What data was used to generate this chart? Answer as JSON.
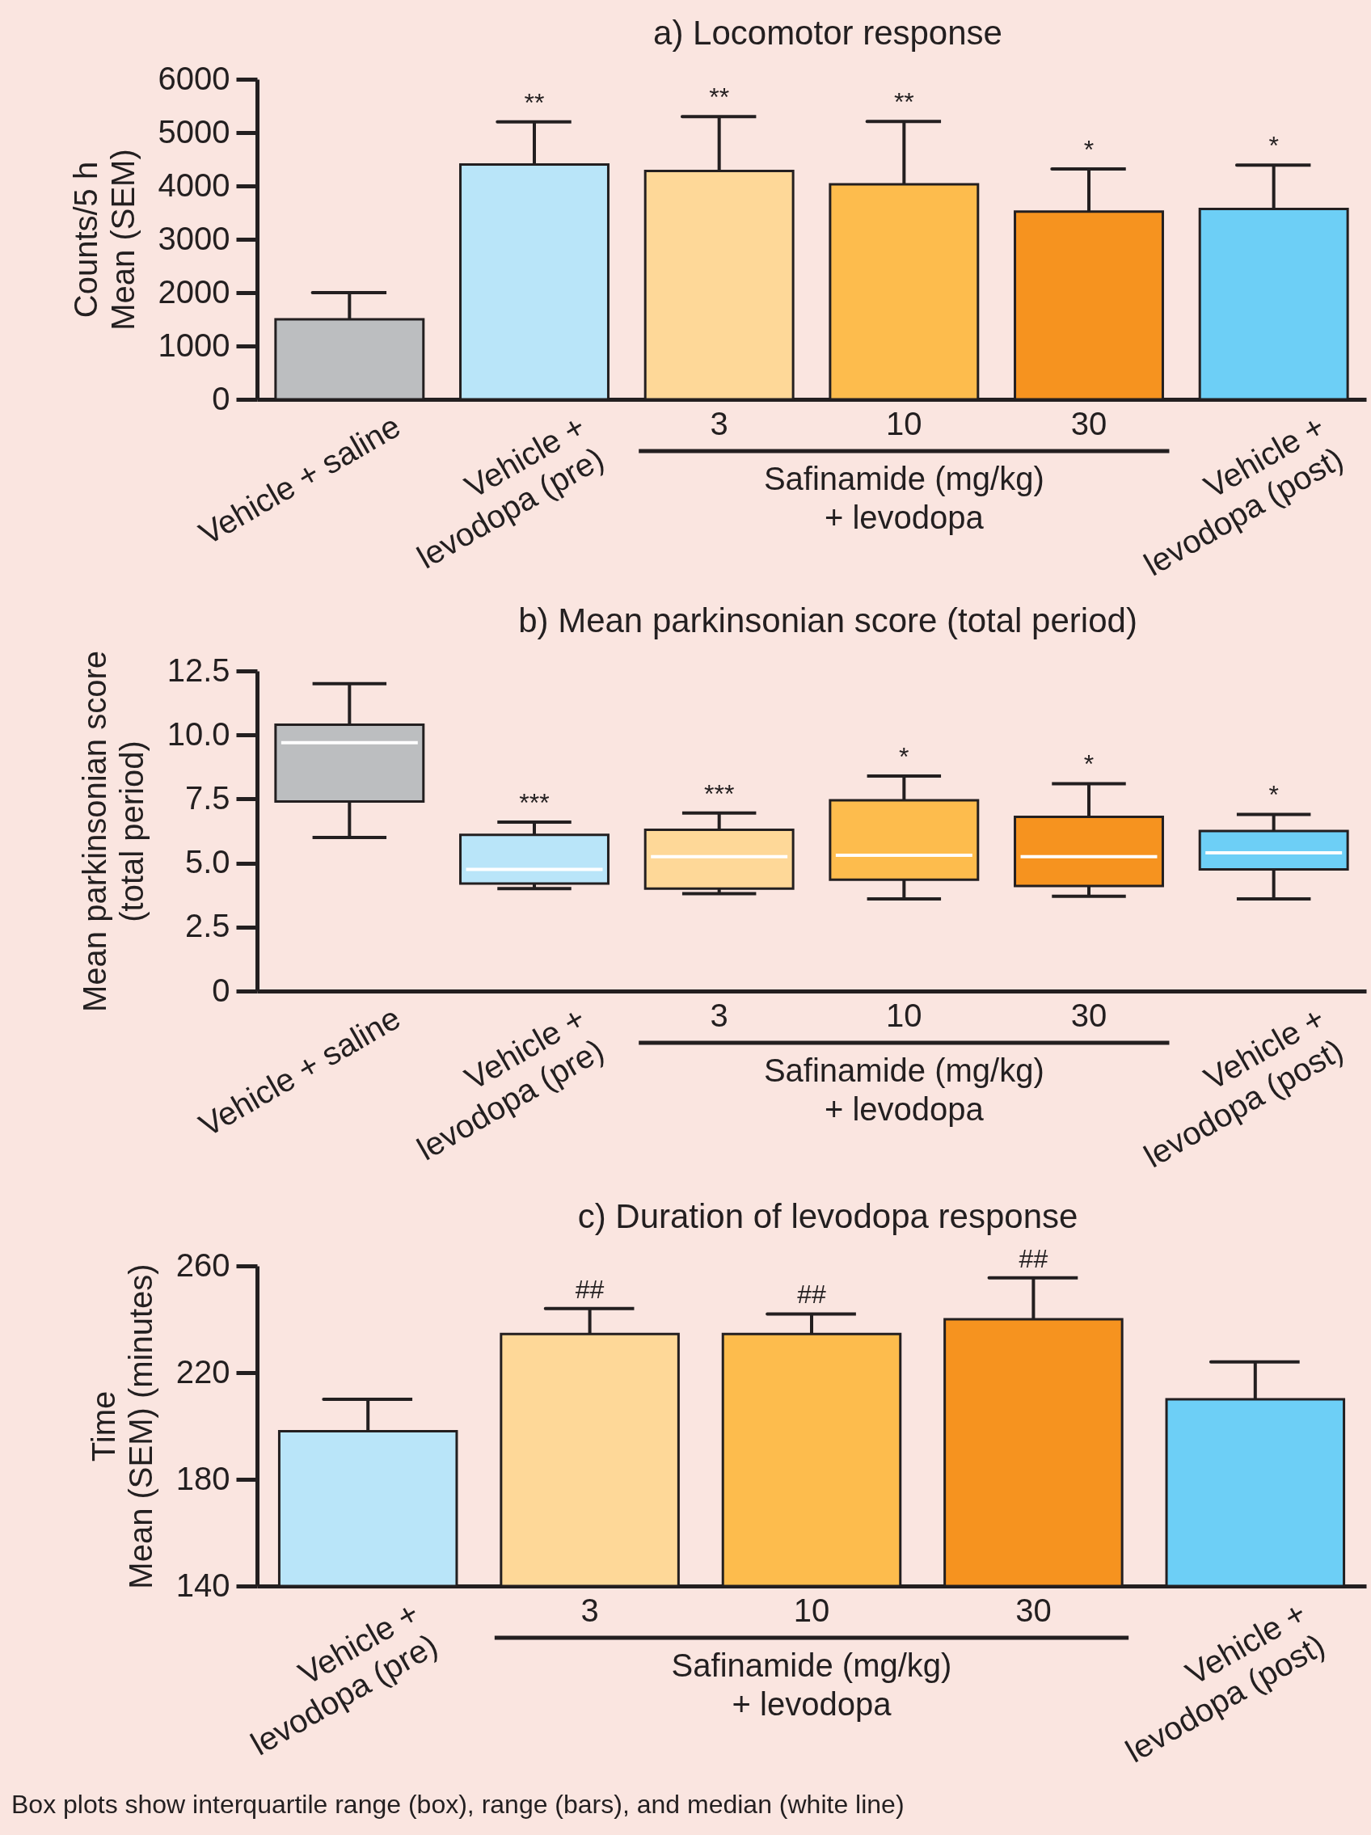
{
  "chart_data": [
    {
      "type": "bar",
      "title": "a) Locomotor response",
      "ylabel": "Counts/5 h\nMean (SEM)",
      "xlabel": "Safinamide (mg/kg)\n+ levodopa",
      "categories": [
        "Vehicle + saline",
        "Vehicle +\nlevodopa (pre)",
        "3",
        "10",
        "30",
        "Vehicle +\nlevodopa (post)"
      ],
      "values": [
        1500,
        4400,
        4280,
        4030,
        3520,
        3570
      ],
      "errors": [
        500,
        800,
        1020,
        1180,
        800,
        820
      ],
      "colors": [
        "#bcbec0",
        "#b9e5f9",
        "#fed898",
        "#fdbc4d",
        "#f6931f",
        "#6dcff6"
      ],
      "ylim": [
        0,
        6000
      ],
      "yticks": [
        0,
        1000,
        2000,
        3000,
        4000,
        5000,
        6000
      ],
      "annotations": [
        {
          "text": "**",
          "x": "Vehicle +\nlevodopa (pre)",
          "y": 5200
        },
        {
          "text": "**",
          "x": "3",
          "y": 5300
        },
        {
          "text": "**",
          "x": "10",
          "y": 5210
        },
        {
          "text": "*",
          "x": "30",
          "y": 4320
        },
        {
          "text": "*",
          "x": "Vehicle +\nlevodopa (post)",
          "y": 4390
        }
      ]
    },
    {
      "type": "box",
      "title": "b) Mean parkinsonian score (total period)",
      "ylabel": "Mean parkinsonian score\n(total period)",
      "xlabel": "Safinamide (mg/kg)\n+ levodopa",
      "categories": [
        "Vehicle + saline",
        "Vehicle +\nlevodopa (pre)",
        "3",
        "10",
        "30",
        "Vehicle +\nlevodopa (post)"
      ],
      "boxes": [
        {
          "low": 6.0,
          "q1": 7.4,
          "median": 9.7,
          "q3": 10.4,
          "high": 12.0
        },
        {
          "low": 4.0,
          "q1": 4.2,
          "median": 4.75,
          "q3": 6.1,
          "high": 6.6
        },
        {
          "low": 3.8,
          "q1": 4.0,
          "median": 5.25,
          "q3": 6.3,
          "high": 6.95
        },
        {
          "low": 3.6,
          "q1": 4.35,
          "median": 5.3,
          "q3": 7.45,
          "high": 8.4
        },
        {
          "low": 3.7,
          "q1": 4.1,
          "median": 5.25,
          "q3": 6.8,
          "high": 8.1
        },
        {
          "low": 3.6,
          "q1": 4.75,
          "median": 5.4,
          "q3": 6.25,
          "high": 6.9
        }
      ],
      "colors": [
        "#bcbec0",
        "#b9e5f9",
        "#fed898",
        "#fdbc4d",
        "#f6931f",
        "#6dcff6"
      ],
      "ylim": [
        0,
        12.5
      ],
      "yticks": [
        0,
        2.5,
        {
          "value": 5,
          "label": "5.0"
        },
        7.5,
        {
          "value": 10,
          "label": "10.0"
        },
        12.5
      ],
      "annotations": [
        {
          "text": "***",
          "x": "Vehicle +\nlevodopa (pre)",
          "y": 6.6
        },
        {
          "text": "***",
          "x": "3",
          "y": 6.95
        },
        {
          "text": "*",
          "x": "10",
          "y": 8.4
        },
        {
          "text": "*",
          "x": "30",
          "y": 8.1
        },
        {
          "text": "*",
          "x": "Vehicle +\nlevodopa (post)",
          "y": 6.9
        }
      ]
    },
    {
      "type": "bar",
      "title": "c) Duration of levodopa response",
      "ylabel": "Time\nMean (SEM) (minutes)",
      "xlabel": "Safinamide (mg/kg)\n+ levodopa",
      "categories": [
        "Vehicle +\nlevodopa (pre)",
        "3",
        "10",
        "30",
        "Vehicle +\nlevodopa (post)"
      ],
      "values": [
        198,
        234.5,
        234.5,
        240,
        210
      ],
      "errors": [
        12,
        9.5,
        7.5,
        15.5,
        14
      ],
      "colors": [
        "#b9e5f9",
        "#fed898",
        "#fdbc4d",
        "#f6931f",
        "#6dcff6"
      ],
      "ylim": [
        140,
        260
      ],
      "yticks": [
        140,
        180,
        220,
        260
      ],
      "annotations": [
        {
          "text": "##",
          "x": "3",
          "y": 244
        },
        {
          "text": "##",
          "x": "10",
          "y": 242
        },
        {
          "text": "##",
          "x": "30",
          "y": 255.5
        },
        "Box plots show interquartile range (box), range (bars), and median (white line)"
      ]
    }
  ]
}
